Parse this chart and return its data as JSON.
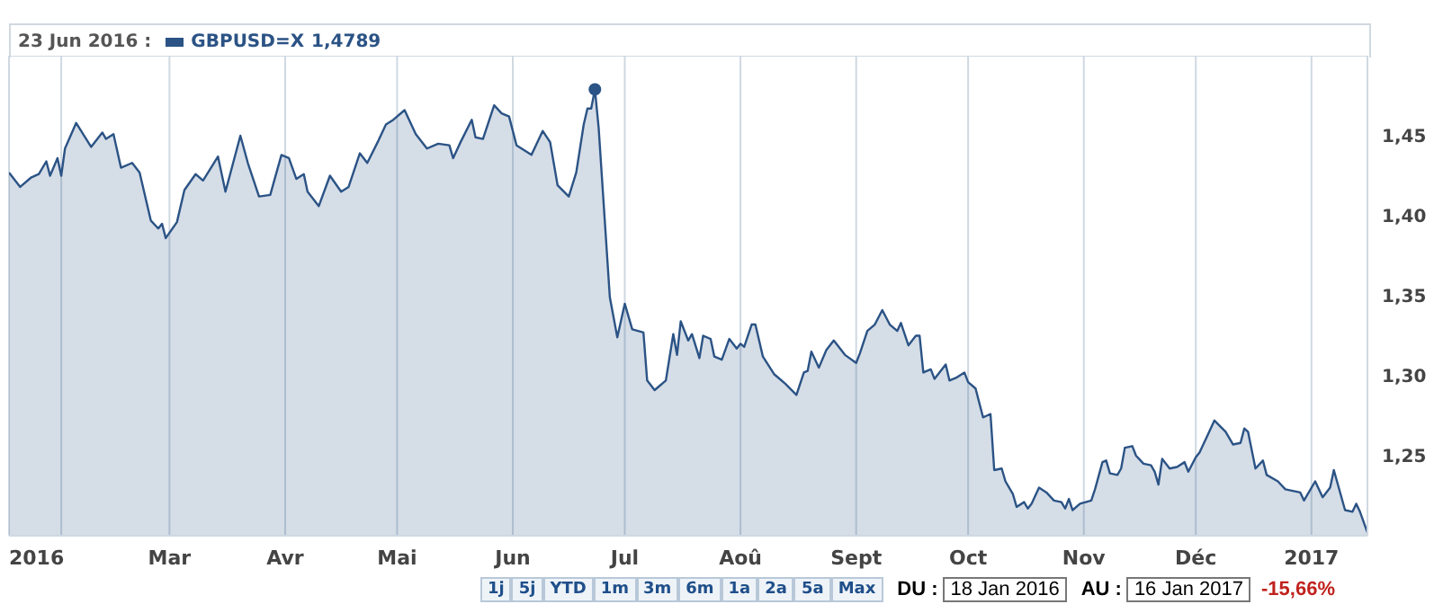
{
  "chart_data": {
    "type": "area",
    "title": "23 Jun 2016 :",
    "legend": "top left",
    "grid": true,
    "xlim": [
      "2016-01-18",
      "2017-01-16"
    ],
    "xticks": [
      {
        "value": "2016-01-18",
        "label": "2016"
      },
      {
        "value": "2016-02-01",
        "label": null
      },
      {
        "value": "2016-03-01",
        "label": "Mar"
      },
      {
        "value": "2016-04-01",
        "label": "Avr"
      },
      {
        "value": "2016-05-01",
        "label": "Mai"
      },
      {
        "value": "2016-06-01",
        "label": "Jun"
      },
      {
        "value": "2016-07-01",
        "label": "Jul"
      },
      {
        "value": "2016-08-01",
        "label": "Aoû"
      },
      {
        "value": "2016-09-01",
        "label": "Sept"
      },
      {
        "value": "2016-10-01",
        "label": "Oct"
      },
      {
        "value": "2016-11-01",
        "label": "Nov"
      },
      {
        "value": "2016-12-01",
        "label": "Déc"
      },
      {
        "value": "2017-01-01",
        "label": "2017"
      }
    ],
    "ylim": [
      1.2,
      1.5
    ],
    "yticks": [
      {
        "value": 1.25,
        "label": "1,25"
      },
      {
        "value": 1.3,
        "label": "1,30"
      },
      {
        "value": 1.35,
        "label": "1,35"
      },
      {
        "value": 1.4,
        "label": "1,40"
      },
      {
        "value": 1.45,
        "label": "1,45"
      }
    ],
    "x": [
      "2016-01-18",
      "2016-01-21",
      "2016-01-24",
      "2016-01-26",
      "2016-01-28",
      "2016-01-29",
      "2016-01-31",
      "2016-02-01",
      "2016-02-02",
      "2016-02-05",
      "2016-02-09",
      "2016-02-12",
      "2016-02-13",
      "2016-02-15",
      "2016-02-17",
      "2016-02-20",
      "2016-02-22",
      "2016-02-25",
      "2016-02-27",
      "2016-02-28",
      "2016-02-29",
      "2016-03-03",
      "2016-03-05",
      "2016-03-08",
      "2016-03-10",
      "2016-03-14",
      "2016-03-16",
      "2016-03-20",
      "2016-03-22",
      "2016-03-25",
      "2016-03-28",
      "2016-03-31",
      "2016-04-02",
      "2016-04-04",
      "2016-04-06",
      "2016-04-07",
      "2016-04-10",
      "2016-04-13",
      "2016-04-16",
      "2016-04-18",
      "2016-04-21",
      "2016-04-23",
      "2016-04-26",
      "2016-04-28",
      "2016-04-30",
      "2016-05-03",
      "2016-05-06",
      "2016-05-09",
      "2016-05-12",
      "2016-05-15",
      "2016-05-16",
      "2016-05-18",
      "2016-05-21",
      "2016-05-22",
      "2016-05-24",
      "2016-05-27",
      "2016-05-29",
      "2016-05-31",
      "2016-06-02",
      "2016-06-06",
      "2016-06-09",
      "2016-06-11",
      "2016-06-13",
      "2016-06-16",
      "2016-06-18",
      "2016-06-20",
      "2016-06-21",
      "2016-06-22",
      "2016-06-23",
      "2016-06-24",
      "2016-06-27",
      "2016-06-29",
      "2016-07-01",
      "2016-07-03",
      "2016-07-06",
      "2016-07-07",
      "2016-07-09",
      "2016-07-12",
      "2016-07-14",
      "2016-07-15",
      "2016-07-16",
      "2016-07-18",
      "2016-07-19",
      "2016-07-21",
      "2016-07-22",
      "2016-07-24",
      "2016-07-25",
      "2016-07-27",
      "2016-07-29",
      "2016-07-31",
      "2016-08-01",
      "2016-08-02",
      "2016-08-04",
      "2016-08-05",
      "2016-08-07",
      "2016-08-10",
      "2016-08-11",
      "2016-08-13",
      "2016-08-16",
      "2016-08-18",
      "2016-08-19",
      "2016-08-20",
      "2016-08-22",
      "2016-08-24",
      "2016-08-26",
      "2016-08-29",
      "2016-09-01",
      "2016-09-02",
      "2016-09-04",
      "2016-09-06",
      "2016-09-08",
      "2016-09-10",
      "2016-09-12",
      "2016-09-13",
      "2016-09-15",
      "2016-09-17",
      "2016-09-18",
      "2016-09-19",
      "2016-09-21",
      "2016-09-22",
      "2016-09-25",
      "2016-09-26",
      "2016-09-28",
      "2016-09-30",
      "2016-10-01",
      "2016-10-03",
      "2016-10-05",
      "2016-10-06",
      "2016-10-07",
      "2016-10-08",
      "2016-10-10",
      "2016-10-11",
      "2016-10-13",
      "2016-10-14",
      "2016-10-16",
      "2016-10-17",
      "2016-10-18",
      "2016-10-20",
      "2016-10-22",
      "2016-10-24",
      "2016-10-26",
      "2016-10-27",
      "2016-10-28",
      "2016-10-29",
      "2016-10-31",
      "2016-11-03",
      "2016-11-04",
      "2016-11-06",
      "2016-11-07",
      "2016-11-08",
      "2016-11-10",
      "2016-11-11",
      "2016-11-12",
      "2016-11-14",
      "2016-11-15",
      "2016-11-17",
      "2016-11-19",
      "2016-11-20",
      "2016-11-21",
      "2016-11-22",
      "2016-11-24",
      "2016-11-26",
      "2016-11-28",
      "2016-11-29",
      "2016-12-01",
      "2016-12-02",
      "2016-12-04",
      "2016-12-06",
      "2016-12-09",
      "2016-12-11",
      "2016-12-13",
      "2016-12-14",
      "2016-12-15",
      "2016-12-17",
      "2016-12-19",
      "2016-12-20",
      "2016-12-23",
      "2016-12-25",
      "2016-12-27",
      "2016-12-29",
      "2016-12-30",
      "2017-01-02",
      "2017-01-04",
      "2017-01-06",
      "2017-01-07",
      "2017-01-10",
      "2017-01-12",
      "2017-01-13",
      "2017-01-14",
      "2017-01-16"
    ],
    "series": [
      {
        "name": "GBPUSD=X",
        "color": "#2b5385",
        "values": [
          1.427,
          1.418,
          1.424,
          1.426,
          1.434,
          1.425,
          1.436,
          1.425,
          1.442,
          1.458,
          1.443,
          1.452,
          1.448,
          1.451,
          1.43,
          1.433,
          1.427,
          1.397,
          1.392,
          1.395,
          1.386,
          1.396,
          1.416,
          1.426,
          1.422,
          1.437,
          1.415,
          1.45,
          1.433,
          1.412,
          1.413,
          1.438,
          1.436,
          1.423,
          1.426,
          1.415,
          1.406,
          1.425,
          1.415,
          1.418,
          1.439,
          1.433,
          1.447,
          1.457,
          1.46,
          1.466,
          1.451,
          1.442,
          1.445,
          1.444,
          1.436,
          1.446,
          1.46,
          1.449,
          1.448,
          1.469,
          1.464,
          1.462,
          1.444,
          1.438,
          1.453,
          1.446,
          1.419,
          1.412,
          1.427,
          1.457,
          1.467,
          1.467,
          1.479,
          1.455,
          1.349,
          1.324,
          1.345,
          1.329,
          1.327,
          1.297,
          1.291,
          1.297,
          1.326,
          1.313,
          1.334,
          1.322,
          1.326,
          1.311,
          1.325,
          1.323,
          1.312,
          1.31,
          1.323,
          1.317,
          1.32,
          1.318,
          1.332,
          1.332,
          1.312,
          1.301,
          1.299,
          1.295,
          1.288,
          1.302,
          1.303,
          1.315,
          1.305,
          1.316,
          1.322,
          1.313,
          1.308,
          1.314,
          1.328,
          1.332,
          1.341,
          1.332,
          1.328,
          1.333,
          1.319,
          1.325,
          1.325,
          1.302,
          1.304,
          1.298,
          1.307,
          1.297,
          1.299,
          1.302,
          1.296,
          1.292,
          1.274,
          1.275,
          1.276,
          1.241,
          1.242,
          1.234,
          1.226,
          1.218,
          1.221,
          1.217,
          1.22,
          1.23,
          1.227,
          1.222,
          1.221,
          1.217,
          1.223,
          1.216,
          1.22,
          1.222,
          1.229,
          1.246,
          1.247,
          1.239,
          1.238,
          1.242,
          1.255,
          1.256,
          1.25,
          1.245,
          1.244,
          1.24,
          1.232,
          1.248,
          1.242,
          1.243,
          1.246,
          1.24,
          1.249,
          1.252,
          1.262,
          1.272,
          1.265,
          1.257,
          1.258,
          1.267,
          1.265,
          1.242,
          1.247,
          1.238,
          1.234,
          1.229,
          1.228,
          1.227,
          1.222,
          1.234,
          1.224,
          1.23,
          1.241,
          1.216,
          1.215,
          1.22,
          1.215,
          1.202
        ]
      }
    ],
    "annotations": [
      "1,4789",
      "1j",
      "5j",
      "YTD",
      "1m",
      "3m",
      "6m",
      "1a",
      "2a",
      "5a",
      "Max",
      "DU :",
      "18 Jan 2016",
      "AU :",
      "16 Jan 2017",
      "-15,66%"
    ]
  }
}
